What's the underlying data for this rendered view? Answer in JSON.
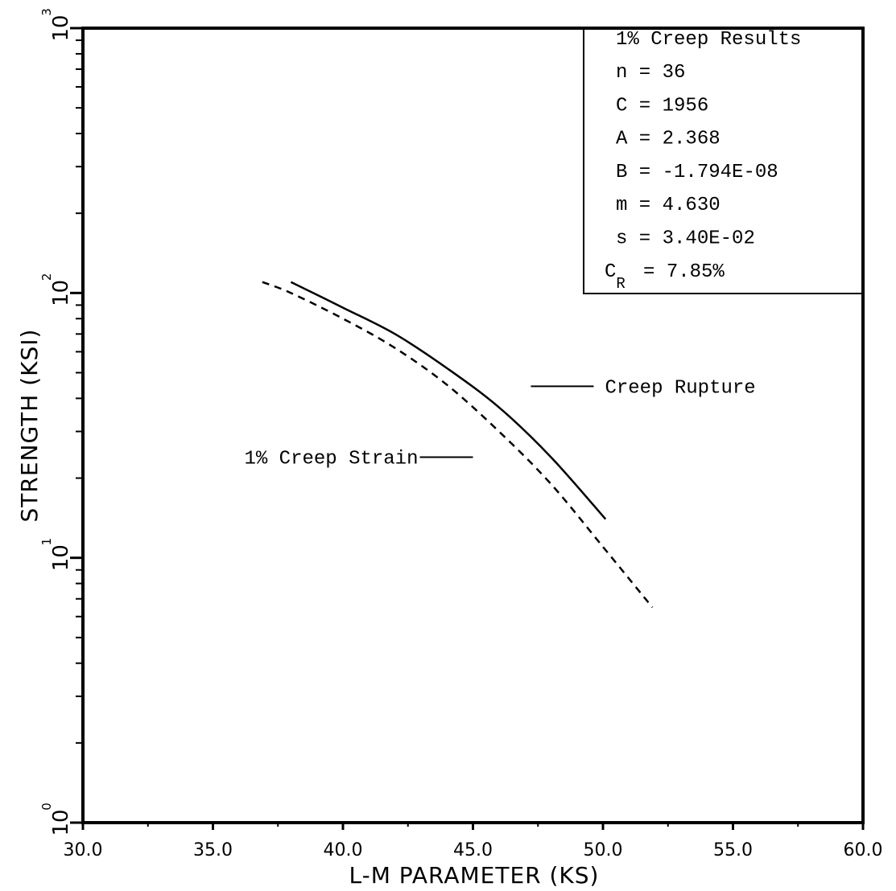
{
  "chart_data": {
    "type": "line",
    "xlabel": "L-M PARAMETER (KS)",
    "ylabel": "STRENGTH (KSI)",
    "xlim": [
      30.0,
      60.0
    ],
    "ylim": [
      1,
      1000
    ],
    "yscale": "log",
    "x_ticks": [
      "30.0",
      "35.0",
      "40.0",
      "45.0",
      "50.0",
      "55.0",
      "60.0"
    ],
    "y_ticks": [
      {
        "base": "10",
        "exp": "0"
      },
      {
        "base": "10",
        "exp": "1"
      },
      {
        "base": "10",
        "exp": "2"
      },
      {
        "base": "10",
        "exp": "3"
      }
    ],
    "grid": false,
    "series": [
      {
        "name": "Creep Rupture",
        "style": "solid",
        "points": [
          [
            38.0,
            110
          ],
          [
            40.0,
            88
          ],
          [
            42.0,
            70
          ],
          [
            44.0,
            52
          ],
          [
            46.0,
            37
          ],
          [
            48.0,
            24
          ],
          [
            50.1,
            14
          ]
        ]
      },
      {
        "name": "1% Creep Strain",
        "style": "dashed",
        "points": [
          [
            36.9,
            110
          ],
          [
            38.0,
            100
          ],
          [
            40.0,
            80
          ],
          [
            42.0,
            62
          ],
          [
            44.0,
            45
          ],
          [
            46.0,
            30
          ],
          [
            48.0,
            19
          ],
          [
            50.0,
            11
          ],
          [
            51.9,
            6.5
          ]
        ]
      }
    ],
    "annotations": [
      {
        "text": "Creep Rupture",
        "x": 50.2,
        "y": 42
      },
      {
        "text": "1% Creep Strain",
        "x": 45.0,
        "y": 24
      }
    ],
    "results_box": {
      "title": "1% Creep Results",
      "rows": [
        {
          "label": "n",
          "sub": "",
          "value": "36"
        },
        {
          "label": "C",
          "sub": "",
          "value": "1956"
        },
        {
          "label": "A",
          "sub": "",
          "value": "2.368"
        },
        {
          "label": "B",
          "sub": "",
          "value": "-1.794E-08"
        },
        {
          "label": "m",
          "sub": "",
          "value": "4.630"
        },
        {
          "label": "s",
          "sub": "",
          "value": "3.40E-02"
        },
        {
          "label": "C",
          "sub": "R",
          "value": "7.85%"
        }
      ]
    }
  }
}
